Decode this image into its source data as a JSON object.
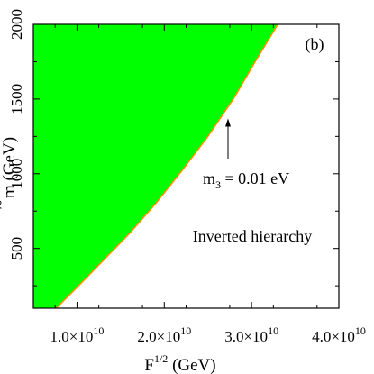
{
  "chart_data": {
    "type": "area",
    "panel_label": "(b)",
    "xlabel": {
      "main": "F",
      "sup": "1/2",
      "unit": " (GeV)"
    },
    "ylabel": {
      "accent": "~",
      "main": "m",
      "unit": " (GeV)"
    },
    "xlim": [
      5000000000.0,
      40000000000.0
    ],
    "ylim": [
      100,
      2000
    ],
    "xticks": [
      {
        "value": 10000000000.0,
        "mant": "1.0",
        "exp": "10"
      },
      {
        "value": 20000000000.0,
        "mant": "2.0",
        "exp": "10"
      },
      {
        "value": 30000000000.0,
        "mant": "3.0",
        "exp": "10"
      },
      {
        "value": 40000000000.0,
        "mant": "4.0",
        "exp": "10"
      }
    ],
    "yticks": [
      {
        "value": 500,
        "label": "500"
      },
      {
        "value": 1000,
        "label": "1000"
      },
      {
        "value": 1500,
        "label": "1500"
      },
      {
        "value": 2000,
        "label": "2000"
      }
    ],
    "series": [
      {
        "fill": "#00ff00",
        "line_color": "#ff8c00",
        "x": [
          7600000000.0,
          10000000000.0,
          13000000000.0,
          16000000000.0,
          19000000000.0,
          22000000000.0,
          25000000000.0,
          28000000000.0,
          30500000000.0,
          33000000000.0
        ],
        "y": [
          100,
          240,
          420,
          600,
          800,
          1020,
          1250,
          1510,
          1760,
          2000
        ]
      }
    ],
    "annotations": [
      {
        "text": "m",
        "sub": "3",
        "rest": " = 0.01 eV",
        "arrow_to_x": 27300000000.0,
        "arrow_to_y": 1370
      },
      {
        "text": "Inverted hierarchy"
      }
    ],
    "colors": {
      "excluded_region": "#00ff00",
      "boundary": "#ff8c00"
    }
  }
}
